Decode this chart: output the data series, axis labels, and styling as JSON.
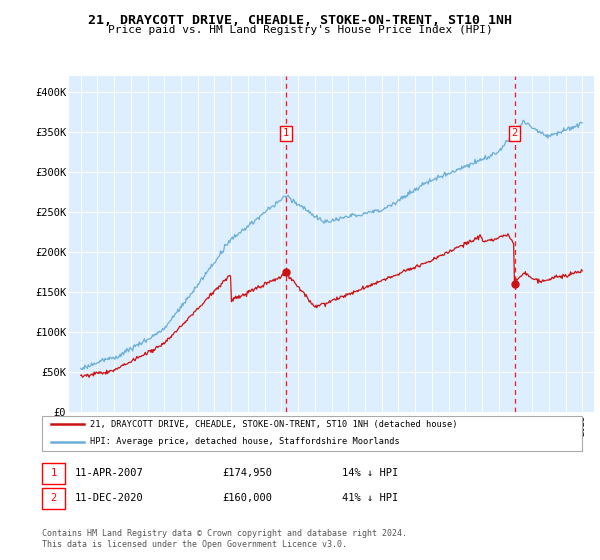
{
  "title": "21, DRAYCOTT DRIVE, CHEADLE, STOKE-ON-TRENT, ST10 1NH",
  "subtitle": "Price paid vs. HM Land Registry's House Price Index (HPI)",
  "legend_line1": "21, DRAYCOTT DRIVE, CHEADLE, STOKE-ON-TRENT, ST10 1NH (detached house)",
  "legend_line2": "HPI: Average price, detached house, Staffordshire Moorlands",
  "annotation1_date": "11-APR-2007",
  "annotation1_price": "£174,950",
  "annotation1_hpi": "14% ↓ HPI",
  "annotation2_date": "11-DEC-2020",
  "annotation2_price": "£160,000",
  "annotation2_hpi": "41% ↓ HPI",
  "footer": "Contains HM Land Registry data © Crown copyright and database right 2024.\nThis data is licensed under the Open Government Licence v3.0.",
  "hpi_color": "#6baed6",
  "price_color": "#cc1111",
  "background_color": "#ddeeff",
  "ylim": [
    0,
    420000
  ],
  "yticks": [
    0,
    50000,
    100000,
    150000,
    200000,
    250000,
    300000,
    350000,
    400000
  ],
  "ytick_labels": [
    "£0",
    "£50K",
    "£100K",
    "£150K",
    "£200K",
    "£250K",
    "£300K",
    "£350K",
    "£400K"
  ],
  "ann1_x_year": 2007.28,
  "ann1_y": 174950,
  "ann2_x_year": 2020.95,
  "ann2_y": 160000,
  "xlim_left": 1994.3,
  "xlim_right": 2025.7
}
